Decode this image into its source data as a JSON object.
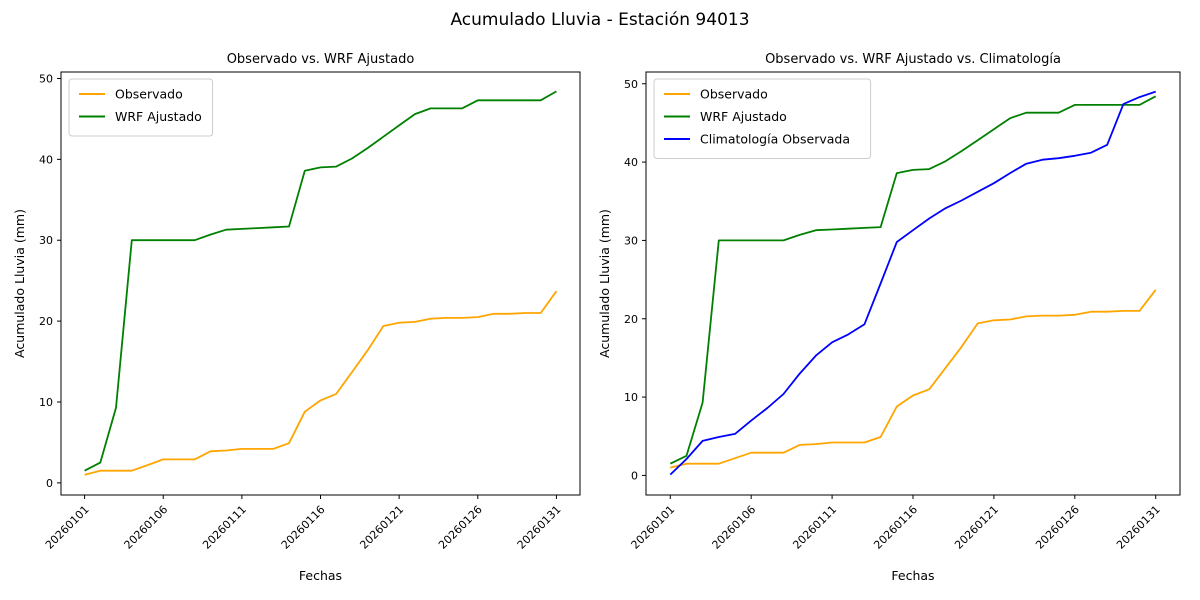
{
  "figure": {
    "suptitle": "Acumulado Lluvia - Estación 94013"
  },
  "chart_data": [
    {
      "type": "line",
      "title": "Observado vs. WRF Ajustado",
      "xlabel": "Fechas",
      "ylabel": "Acumulado Lluvia (mm)",
      "x_categories": [
        "20260101",
        "20260102",
        "20260103",
        "20260104",
        "20260105",
        "20260106",
        "20260107",
        "20260108",
        "20260109",
        "20260110",
        "20260111",
        "20260112",
        "20260113",
        "20260114",
        "20260115",
        "20260116",
        "20260117",
        "20260118",
        "20260119",
        "20260120",
        "20260121",
        "20260122",
        "20260123",
        "20260124",
        "20260125",
        "20260126",
        "20260127",
        "20260128",
        "20260129",
        "20260130",
        "20260131"
      ],
      "x_tick_labels": [
        "20260101",
        "20260106",
        "20260111",
        "20260116",
        "20260121",
        "20260126",
        "20260131"
      ],
      "y_ticks": [
        0,
        10,
        20,
        30,
        40,
        50
      ],
      "xlim_index": [
        -1.5,
        31.5
      ],
      "ylim": [
        -1.5,
        50.8
      ],
      "grid": false,
      "legend_position": "upper left",
      "series": [
        {
          "name": "Observado",
          "color": "#FFA500",
          "values": [
            1.0,
            1.5,
            1.5,
            1.5,
            2.2,
            2.9,
            2.9,
            2.9,
            3.9,
            4.0,
            4.2,
            4.2,
            4.2,
            4.9,
            8.8,
            10.2,
            11.0,
            13.7,
            16.4,
            19.4,
            19.8,
            19.9,
            20.3,
            20.4,
            20.4,
            20.5,
            20.9,
            20.9,
            21.0,
            21.0,
            23.7
          ]
        },
        {
          "name": "WRF Ajustado",
          "color": "#008000",
          "values": [
            1.5,
            2.5,
            9.3,
            30.0,
            30.0,
            30.0,
            30.0,
            30.0,
            30.7,
            31.3,
            31.4,
            31.5,
            31.6,
            31.7,
            38.6,
            39.0,
            39.1,
            40.1,
            41.4,
            42.8,
            44.2,
            45.6,
            46.3,
            46.3,
            46.3,
            47.3,
            47.3,
            47.3,
            47.3,
            47.3,
            48.4
          ]
        }
      ]
    },
    {
      "type": "line",
      "title": "Observado vs. WRF Ajustado vs. Climatología",
      "xlabel": "Fechas",
      "ylabel": "Acumulado Lluvia (mm)",
      "x_categories": [
        "20260101",
        "20260102",
        "20260103",
        "20260104",
        "20260105",
        "20260106",
        "20260107",
        "20260108",
        "20260109",
        "20260110",
        "20260111",
        "20260112",
        "20260113",
        "20260114",
        "20260115",
        "20260116",
        "20260117",
        "20260118",
        "20260119",
        "20260120",
        "20260121",
        "20260122",
        "20260123",
        "20260124",
        "20260125",
        "20260126",
        "20260127",
        "20260128",
        "20260129",
        "20260130",
        "20260131"
      ],
      "x_tick_labels": [
        "20260101",
        "20260106",
        "20260111",
        "20260116",
        "20260121",
        "20260126",
        "20260131"
      ],
      "y_ticks": [
        0,
        10,
        20,
        30,
        40,
        50
      ],
      "xlim_index": [
        -1.5,
        31.5
      ],
      "ylim": [
        -2.5,
        51.5
      ],
      "grid": false,
      "legend_position": "upper left",
      "series": [
        {
          "name": "Observado",
          "color": "#FFA500",
          "values": [
            1.0,
            1.5,
            1.5,
            1.5,
            2.2,
            2.9,
            2.9,
            2.9,
            3.9,
            4.0,
            4.2,
            4.2,
            4.2,
            4.9,
            8.8,
            10.2,
            11.0,
            13.7,
            16.4,
            19.4,
            19.8,
            19.9,
            20.3,
            20.4,
            20.4,
            20.5,
            20.9,
            20.9,
            21.0,
            21.0,
            23.7
          ]
        },
        {
          "name": "WRF Ajustado",
          "color": "#008000",
          "values": [
            1.5,
            2.5,
            9.3,
            30.0,
            30.0,
            30.0,
            30.0,
            30.0,
            30.7,
            31.3,
            31.4,
            31.5,
            31.6,
            31.7,
            38.6,
            39.0,
            39.1,
            40.1,
            41.4,
            42.8,
            44.2,
            45.6,
            46.3,
            46.3,
            46.3,
            47.3,
            47.3,
            47.3,
            47.3,
            47.3,
            48.4
          ]
        },
        {
          "name": "Climatología Observada",
          "color": "#0000FF",
          "values": [
            0.1,
            2.1,
            4.4,
            4.9,
            5.3,
            7.0,
            8.6,
            10.4,
            13.0,
            15.3,
            17.0,
            18.0,
            19.3,
            24.5,
            29.8,
            31.3,
            32.8,
            34.1,
            35.1,
            36.2,
            37.3,
            38.6,
            39.8,
            40.3,
            40.5,
            40.8,
            41.2,
            42.2,
            47.4,
            48.3,
            49.0
          ]
        }
      ]
    }
  ]
}
